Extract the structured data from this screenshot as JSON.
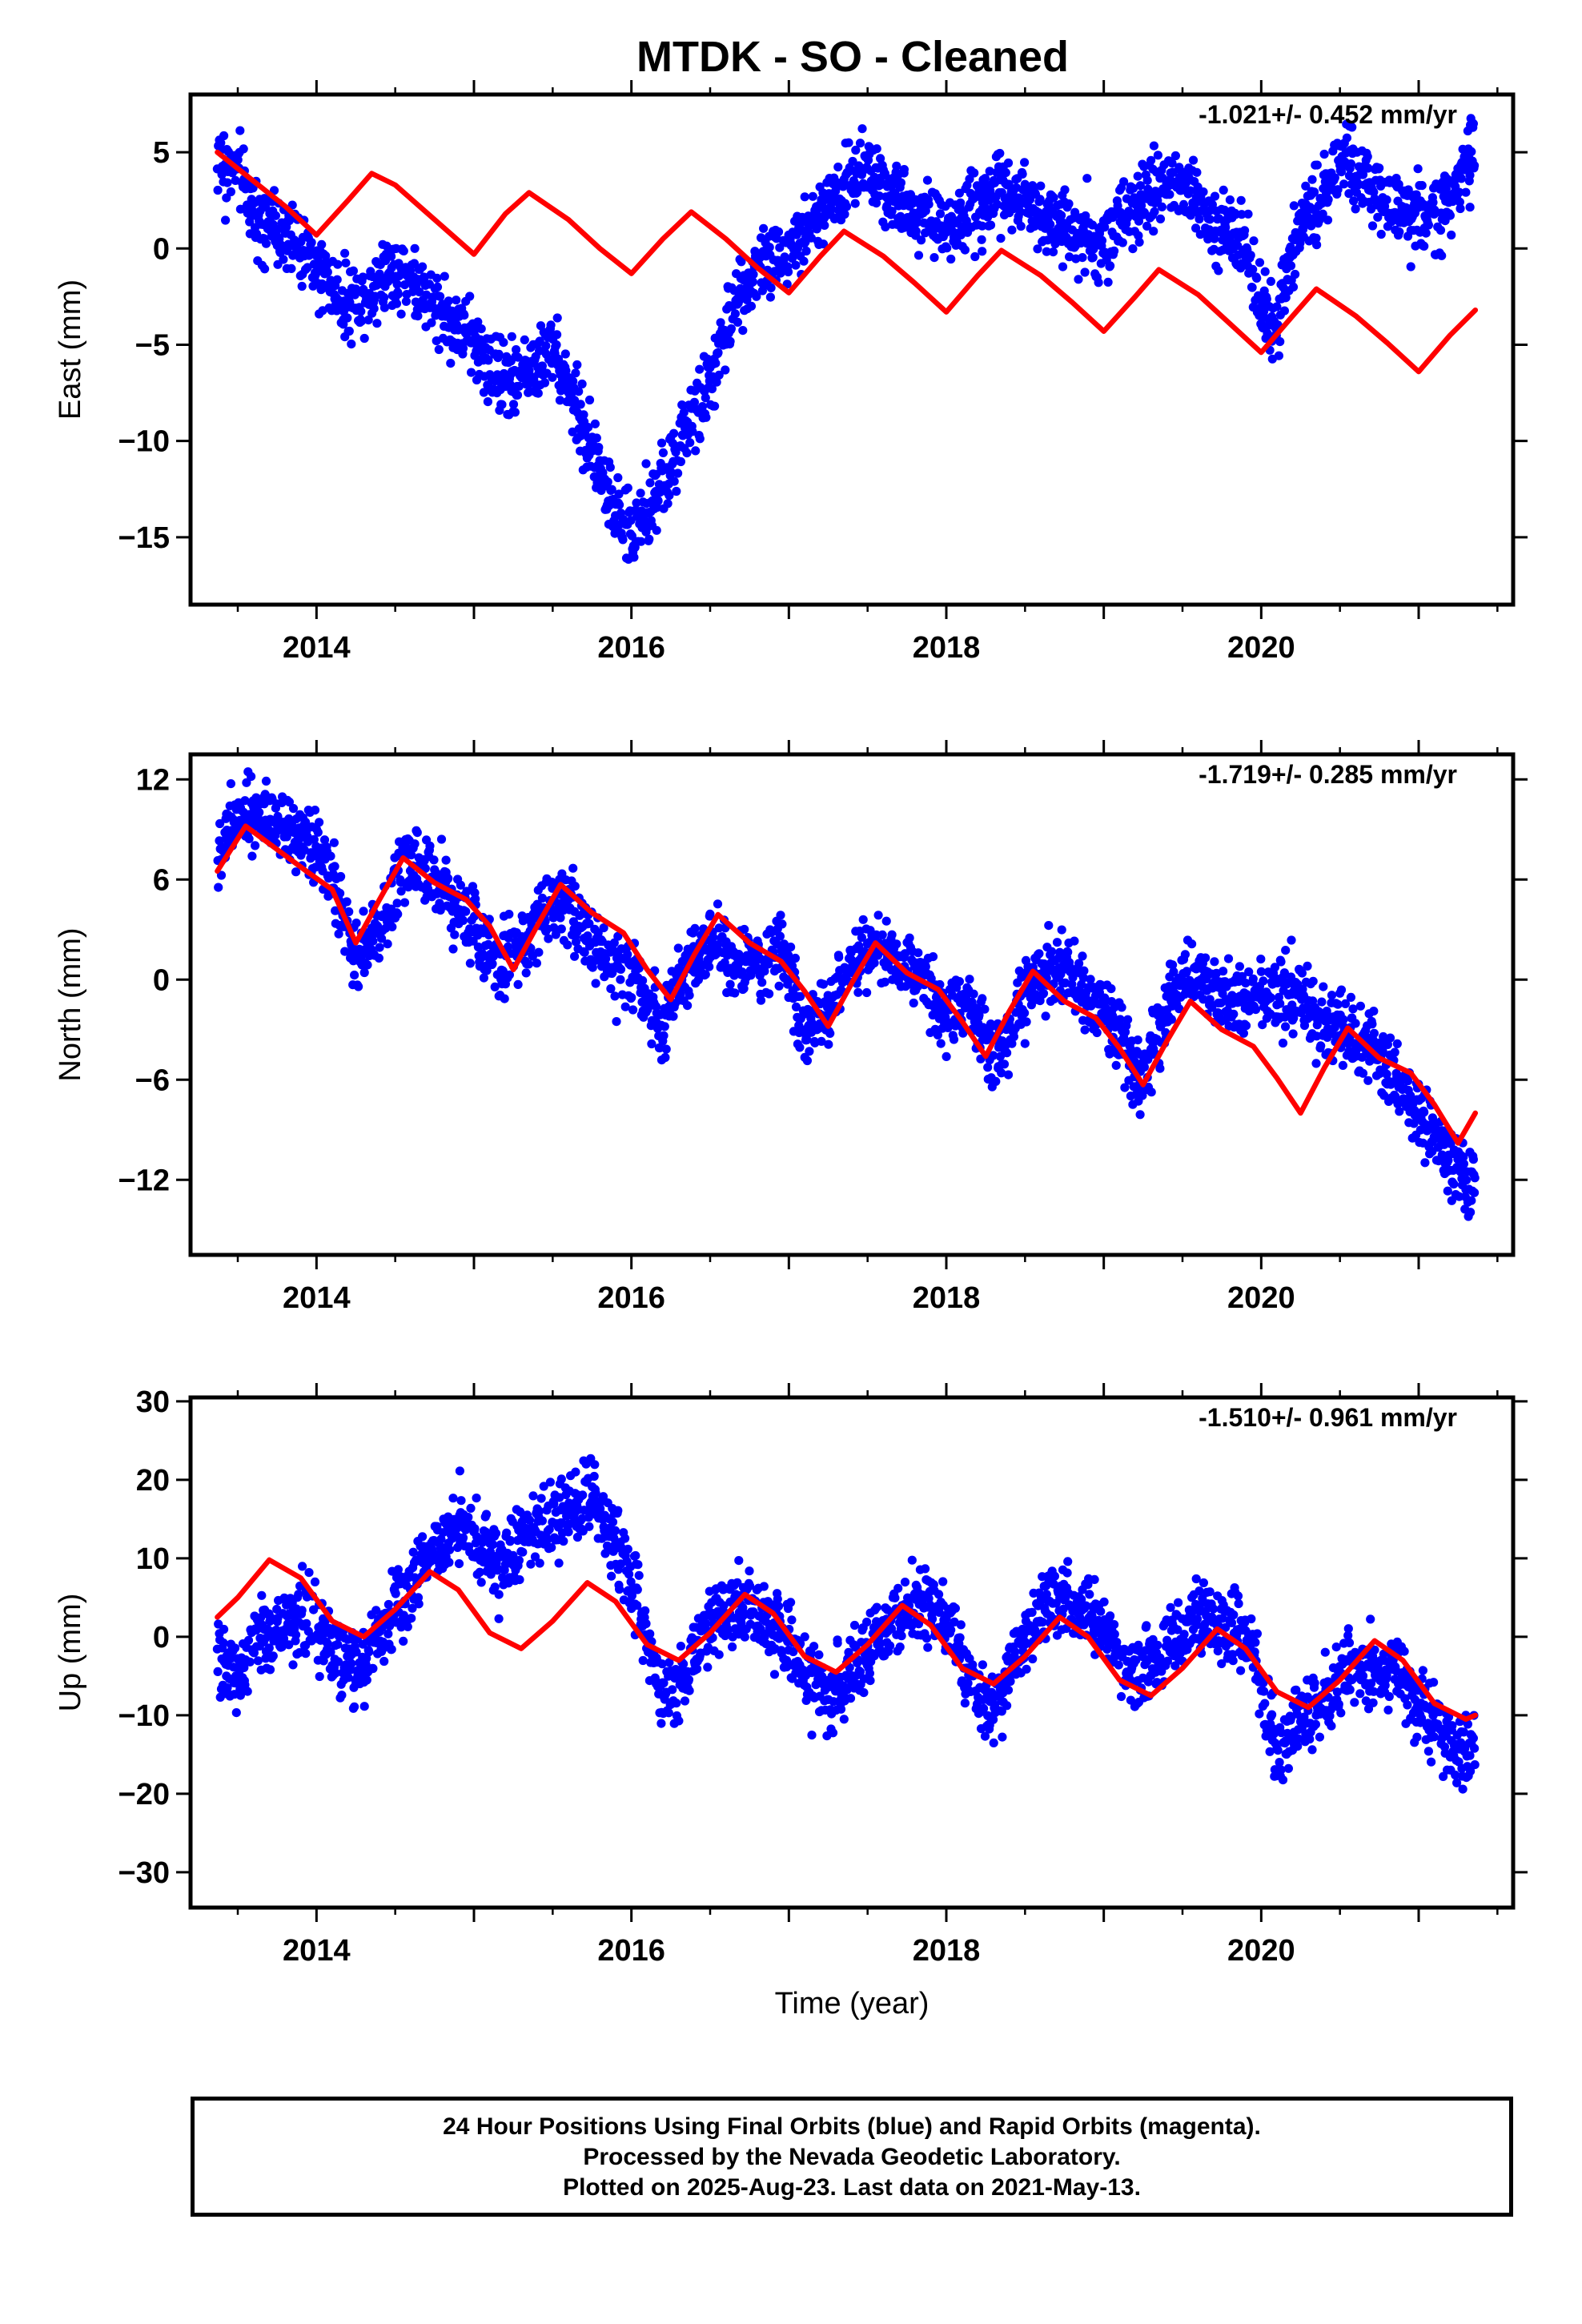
{
  "title": "MTDK  - SO - Cleaned",
  "colors": {
    "data": "#0000ff",
    "model": "#ff0000",
    "axes": "#000000"
  },
  "caption": [
    "24 Hour Positions Using Final Orbits (blue) and Rapid Orbits (magenta).",
    "Processed by the Nevada Geodetic Laboratory.",
    "Plotted on 2025-Aug-23. Last data on 2021-May-13."
  ],
  "chart_data": [
    {
      "type": "scatter",
      "ylabel": "East (mm)",
      "xlabel": "",
      "xlim": [
        2013.2,
        2021.6
      ],
      "ylim": [
        -18.5,
        8.0
      ],
      "xticks": [
        2014,
        2016,
        2018,
        2020
      ],
      "yticks": [
        5,
        0,
        -5,
        -10,
        -15
      ],
      "ytick_labels": [
        "5",
        "0",
        "−5",
        "−10",
        "−15"
      ],
      "rate_label": "-1.021+/- 0.452 mm/yr",
      "series": [
        {
          "name": "",
          "style": "points",
          "color": "#0000ff",
          "x": [
            2013.37,
            2013.5,
            2013.6,
            2013.75,
            2013.9,
            2014.0,
            2014.1,
            2014.2,
            2014.3,
            2014.45,
            2014.6,
            2014.75,
            2014.9,
            2015.0,
            2015.1,
            2015.25,
            2015.4,
            2015.5,
            2015.6,
            2015.7,
            2015.8,
            2015.9,
            2016.0,
            2016.1,
            2016.2,
            2016.3,
            2016.4,
            2016.5,
            2016.6,
            2016.7,
            2016.8,
            2016.9,
            2017.0,
            2017.1,
            2017.2,
            2017.35,
            2017.5,
            2017.65,
            2017.8,
            2018.0,
            2018.15,
            2018.3,
            2018.45,
            2018.6,
            2018.8,
            2019.0,
            2019.15,
            2019.3,
            2019.45,
            2019.6,
            2019.75,
            2019.9,
            2020.0,
            2020.1,
            2020.2,
            2020.35,
            2020.5,
            2020.65,
            2020.8,
            2020.95,
            2021.1,
            2021.25,
            2021.36
          ],
          "y": [
            4.5,
            4.0,
            2.0,
            1.0,
            0.0,
            -1.0,
            -2.0,
            -3.0,
            -2.5,
            -1.0,
            -1.5,
            -3.0,
            -4.0,
            -5.0,
            -6.0,
            -7.0,
            -6.0,
            -5.0,
            -7.0,
            -9.5,
            -11.5,
            -13.5,
            -15.0,
            -14.0,
            -12.0,
            -10.5,
            -8.5,
            -7.0,
            -4.5,
            -2.0,
            -1.0,
            -0.5,
            0.0,
            1.0,
            2.0,
            3.0,
            4.5,
            3.0,
            2.0,
            1.0,
            2.0,
            3.0,
            3.0,
            2.0,
            1.0,
            0.0,
            1.5,
            3.0,
            3.5,
            2.5,
            1.0,
            0.0,
            -3.0,
            -4.0,
            0.5,
            2.5,
            4.5,
            3.5,
            2.0,
            2.0,
            1.5,
            3.0,
            5.5
          ]
        },
        {
          "name": "",
          "style": "line",
          "color": "#ff0000",
          "x": [
            2013.37,
            2013.6,
            2013.8,
            2014.0,
            2014.2,
            2014.35,
            2014.5,
            2014.75,
            2015.0,
            2015.2,
            2015.35,
            2015.6,
            2015.8,
            2016.0,
            2016.2,
            2016.38,
            2016.6,
            2016.8,
            2017.0,
            2017.2,
            2017.35,
            2017.6,
            2017.8,
            2018.0,
            2018.2,
            2018.35,
            2018.6,
            2018.8,
            2019.0,
            2019.2,
            2019.35,
            2019.6,
            2019.8,
            2020.0,
            2020.2,
            2020.35,
            2020.6,
            2020.8,
            2021.0,
            2021.2,
            2021.36
          ],
          "y": [
            5.0,
            3.5,
            2.2,
            0.7,
            2.5,
            3.9,
            3.3,
            1.5,
            -0.3,
            1.8,
            2.9,
            1.5,
            0.0,
            -1.3,
            0.5,
            1.9,
            0.5,
            -1.0,
            -2.3,
            -0.4,
            0.9,
            -0.4,
            -1.8,
            -3.3,
            -1.4,
            -0.1,
            -1.4,
            -2.8,
            -4.3,
            -2.5,
            -1.1,
            -2.4,
            -3.9,
            -5.4,
            -3.5,
            -2.1,
            -3.5,
            -4.9,
            -6.4,
            -4.5,
            -3.2
          ]
        }
      ]
    },
    {
      "type": "scatter",
      "ylabel": "North (mm)",
      "xlabel": "",
      "xlim": [
        2013.2,
        2021.6
      ],
      "ylim": [
        -16.5,
        13.5
      ],
      "xticks": [
        2014,
        2016,
        2018,
        2020
      ],
      "yticks": [
        12,
        6,
        0,
        -6,
        -12
      ],
      "ytick_labels": [
        "12",
        "6",
        "0",
        "−6",
        "−12"
      ],
      "rate_label": "-1.719+/- 0.285 mm/yr",
      "series": [
        {
          "name": "",
          "style": "points",
          "color": "#0000ff",
          "x": [
            2013.37,
            2013.5,
            2013.65,
            2013.8,
            2013.95,
            2014.1,
            2014.25,
            2014.4,
            2014.55,
            2014.7,
            2014.85,
            2015.0,
            2015.15,
            2015.3,
            2015.45,
            2015.6,
            2015.75,
            2015.9,
            2016.05,
            2016.2,
            2016.35,
            2016.5,
            2016.65,
            2016.8,
            2016.95,
            2017.1,
            2017.25,
            2017.4,
            2017.55,
            2017.7,
            2017.85,
            2018.0,
            2018.15,
            2018.3,
            2018.45,
            2018.6,
            2018.75,
            2018.9,
            2019.05,
            2019.2,
            2019.35,
            2019.5,
            2019.65,
            2019.8,
            2019.95,
            2020.1,
            2020.25,
            2020.4,
            2020.55,
            2020.7,
            2020.85,
            2021.0,
            2021.15,
            2021.3,
            2021.36
          ],
          "y": [
            7.0,
            10.5,
            10.0,
            9.5,
            8.0,
            6.0,
            1.0,
            3.0,
            7.0,
            7.0,
            5.0,
            3.0,
            1.0,
            2.0,
            4.0,
            4.5,
            2.0,
            1.0,
            0.0,
            -3.0,
            1.0,
            2.0,
            1.0,
            1.0,
            1.5,
            -3.0,
            -2.0,
            1.0,
            2.0,
            1.5,
            -0.5,
            -2.0,
            -1.0,
            -5.0,
            -2.0,
            0.5,
            0.5,
            -1.0,
            -2.0,
            -6.0,
            -3.0,
            0.5,
            0.0,
            -1.5,
            -1.0,
            -1.0,
            -1.5,
            -3.0,
            -3.0,
            -4.0,
            -6.0,
            -8.0,
            -10.0,
            -12.0,
            -12.0
          ]
        },
        {
          "name": "",
          "style": "line",
          "color": "#ff0000",
          "x": [
            2013.37,
            2013.55,
            2013.75,
            2013.95,
            2014.1,
            2014.25,
            2014.4,
            2014.55,
            2014.75,
            2014.95,
            2015.1,
            2015.25,
            2015.4,
            2015.55,
            2015.75,
            2015.95,
            2016.1,
            2016.25,
            2016.4,
            2016.55,
            2016.75,
            2016.95,
            2017.1,
            2017.25,
            2017.4,
            2017.55,
            2017.75,
            2017.95,
            2018.1,
            2018.25,
            2018.4,
            2018.55,
            2018.75,
            2018.95,
            2019.1,
            2019.25,
            2019.4,
            2019.55,
            2019.75,
            2019.95,
            2020.1,
            2020.25,
            2020.4,
            2020.55,
            2020.75,
            2020.95,
            2021.1,
            2021.25,
            2021.36
          ],
          "y": [
            6.5,
            9.2,
            7.8,
            6.4,
            5.4,
            2.2,
            4.8,
            7.3,
            5.8,
            4.8,
            3.2,
            0.6,
            3.2,
            5.7,
            4.0,
            2.8,
            0.6,
            -1.2,
            1.5,
            3.9,
            2.2,
            1.1,
            -0.7,
            -2.8,
            -0.2,
            2.2,
            0.4,
            -0.6,
            -2.5,
            -4.6,
            -1.9,
            0.5,
            -1.3,
            -2.3,
            -4.1,
            -6.3,
            -3.7,
            -1.3,
            -3.0,
            -4.0,
            -5.9,
            -8.0,
            -5.3,
            -2.9,
            -4.7,
            -5.6,
            -7.5,
            -9.8,
            -8.0
          ]
        }
      ]
    },
    {
      "type": "scatter",
      "ylabel": "Up (mm)",
      "xlabel": "Time (year)",
      "xlim": [
        2013.2,
        2021.6
      ],
      "ylim": [
        -34.5,
        30.5
      ],
      "xticks": [
        2014,
        2016,
        2018,
        2020
      ],
      "yticks": [
        30,
        20,
        10,
        0,
        -10,
        -20,
        -30
      ],
      "ytick_labels": [
        "30",
        "20",
        "10",
        "0",
        "−10",
        "−20",
        "−30"
      ],
      "rate_label": "-1.510+/- 0.961 mm/yr",
      "series": [
        {
          "name": "",
          "style": "points",
          "color": "#0000ff",
          "x": [
            2013.37,
            2013.5,
            2013.65,
            2013.8,
            2013.95,
            2014.1,
            2014.25,
            2014.4,
            2014.55,
            2014.7,
            2014.85,
            2015.0,
            2015.15,
            2015.3,
            2015.45,
            2015.6,
            2015.75,
            2015.9,
            2016.05,
            2016.2,
            2016.35,
            2016.5,
            2016.65,
            2016.8,
            2016.95,
            2017.1,
            2017.25,
            2017.4,
            2017.55,
            2017.7,
            2017.85,
            2018.0,
            2018.15,
            2018.3,
            2018.45,
            2018.6,
            2018.75,
            2018.9,
            2019.05,
            2019.2,
            2019.35,
            2019.5,
            2019.65,
            2019.8,
            2019.95,
            2020.1,
            2020.25,
            2020.4,
            2020.55,
            2020.7,
            2020.85,
            2021.0,
            2021.15,
            2021.3,
            2021.36
          ],
          "y": [
            -3.0,
            -4.0,
            0.0,
            2.0,
            3.0,
            -2.0,
            -5.0,
            0.0,
            5.0,
            10.0,
            14.0,
            12.0,
            10.0,
            12.0,
            14.0,
            16.0,
            18.0,
            12.0,
            4.0,
            -8.0,
            -5.0,
            2.0,
            4.0,
            3.0,
            0.0,
            -4.0,
            -8.0,
            -5.0,
            0.0,
            3.0,
            5.0,
            2.0,
            -5.0,
            -10.0,
            -2.0,
            3.0,
            5.0,
            3.0,
            0.0,
            -5.0,
            -3.0,
            0.0,
            3.0,
            2.0,
            -2.0,
            -15.0,
            -10.0,
            -8.0,
            -4.0,
            -5.0,
            -4.0,
            -8.0,
            -12.0,
            -15.0,
            -14.0
          ]
        },
        {
          "name": "",
          "style": "line",
          "color": "#ff0000",
          "x": [
            2013.37,
            2013.5,
            2013.7,
            2013.9,
            2014.1,
            2014.3,
            2014.5,
            2014.72,
            2014.9,
            2015.1,
            2015.3,
            2015.5,
            2015.72,
            2015.9,
            2016.1,
            2016.3,
            2016.5,
            2016.72,
            2016.9,
            2017.1,
            2017.3,
            2017.5,
            2017.72,
            2017.9,
            2018.1,
            2018.3,
            2018.5,
            2018.72,
            2018.9,
            2019.1,
            2019.3,
            2019.5,
            2019.72,
            2019.9,
            2020.1,
            2020.3,
            2020.5,
            2020.72,
            2020.9,
            2021.1,
            2021.3,
            2021.36
          ],
          "y": [
            2.5,
            5.0,
            9.8,
            7.5,
            2.0,
            0.0,
            3.5,
            8.3,
            6.0,
            0.5,
            -1.5,
            2.0,
            6.9,
            4.5,
            -1.0,
            -3.0,
            0.5,
            5.4,
            3.0,
            -2.5,
            -4.5,
            -1.0,
            4.0,
            1.5,
            -4.0,
            -6.0,
            -2.5,
            2.5,
            0.0,
            -5.5,
            -7.5,
            -4.0,
            1.0,
            -1.5,
            -7.0,
            -9.0,
            -5.5,
            -0.5,
            -3.0,
            -8.5,
            -10.5,
            -10.0
          ]
        }
      ]
    }
  ]
}
